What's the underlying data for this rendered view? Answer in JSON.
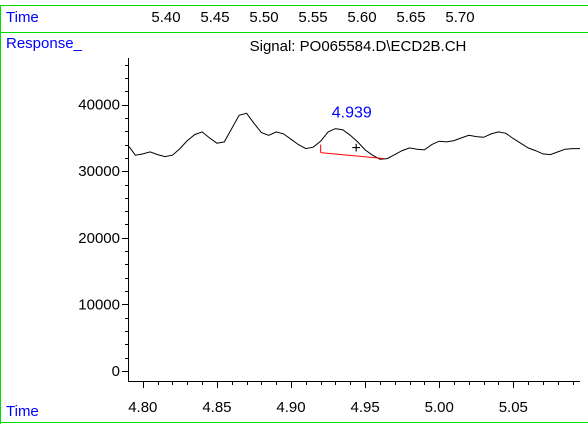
{
  "colors": {
    "frame": "#00dd00",
    "label_blue": "#0000ff",
    "trace": "#000000",
    "baseline": "#ff0000",
    "peak_label": "#0000ff"
  },
  "labels": {
    "time_top": "Time",
    "response": "Response_",
    "time_bottom": "Time"
  },
  "top_axis": {
    "ticks": [
      "5.40",
      "5.45",
      "5.50",
      "5.55",
      "5.60",
      "5.65",
      "5.70"
    ]
  },
  "chart_data": {
    "type": "line",
    "title": "Signal: PO065584.D\\ECD2B.CH",
    "xlabel": "Time",
    "ylabel": "Response_",
    "xlim": [
      4.79,
      5.095
    ],
    "ylim": [
      -1500,
      47000
    ],
    "x_ticks": [
      4.8,
      4.85,
      4.9,
      4.95,
      5.0,
      5.05
    ],
    "x_tick_labels": [
      "4.80",
      "4.85",
      "4.90",
      "4.95",
      "5.00",
      "5.05"
    ],
    "y_ticks": [
      0,
      10000,
      20000,
      30000,
      40000
    ],
    "y_tick_labels": [
      "0",
      "10000",
      "20000",
      "30000",
      "40000"
    ],
    "x_minor_step": 0.01,
    "y_minor_step": 2000,
    "series": [
      {
        "x": [
          4.79,
          4.795,
          4.8,
          4.805,
          4.81,
          4.815,
          4.82,
          4.825,
          4.83,
          4.835,
          4.84,
          4.845,
          4.85,
          4.855,
          4.86,
          4.865,
          4.87,
          4.875,
          4.88,
          4.885,
          4.89,
          4.895,
          4.9,
          4.905,
          4.91,
          4.915,
          4.92,
          4.925,
          4.93,
          4.935,
          4.94,
          4.945,
          4.95,
          4.955,
          4.96,
          4.965,
          4.97,
          4.975,
          4.98,
          4.985,
          4.99,
          4.995,
          5.0,
          5.005,
          5.01,
          5.015,
          5.02,
          5.025,
          5.03,
          5.035,
          5.04,
          5.045,
          5.05,
          5.055,
          5.06,
          5.065,
          5.07,
          5.075,
          5.08,
          5.085,
          5.09,
          5.095
        ],
        "y": [
          33700,
          32400,
          32600,
          32900,
          32500,
          32200,
          32400,
          33400,
          34600,
          35500,
          35900,
          35000,
          34200,
          34400,
          36400,
          38400,
          38700,
          37200,
          35800,
          35400,
          35900,
          35600,
          34800,
          34000,
          33400,
          33600,
          34500,
          35900,
          36400,
          36200,
          35400,
          34400,
          33200,
          32400,
          31800,
          31900,
          32500,
          33100,
          33500,
          33300,
          33200,
          34000,
          34500,
          34400,
          34600,
          35000,
          35400,
          35200,
          35100,
          35600,
          35900,
          35700,
          34900,
          34200,
          33500,
          33100,
          32600,
          32500,
          32900,
          33300,
          33400,
          33400
        ]
      }
    ],
    "peak": {
      "label": "4.939",
      "apex_x": 4.939,
      "apex_y": 36600,
      "marker": "+",
      "marker_x": 4.944,
      "marker_y": 33600,
      "baseline_start": [
        4.92,
        32800
      ],
      "baseline_end": [
        4.963,
        31900
      ]
    }
  }
}
